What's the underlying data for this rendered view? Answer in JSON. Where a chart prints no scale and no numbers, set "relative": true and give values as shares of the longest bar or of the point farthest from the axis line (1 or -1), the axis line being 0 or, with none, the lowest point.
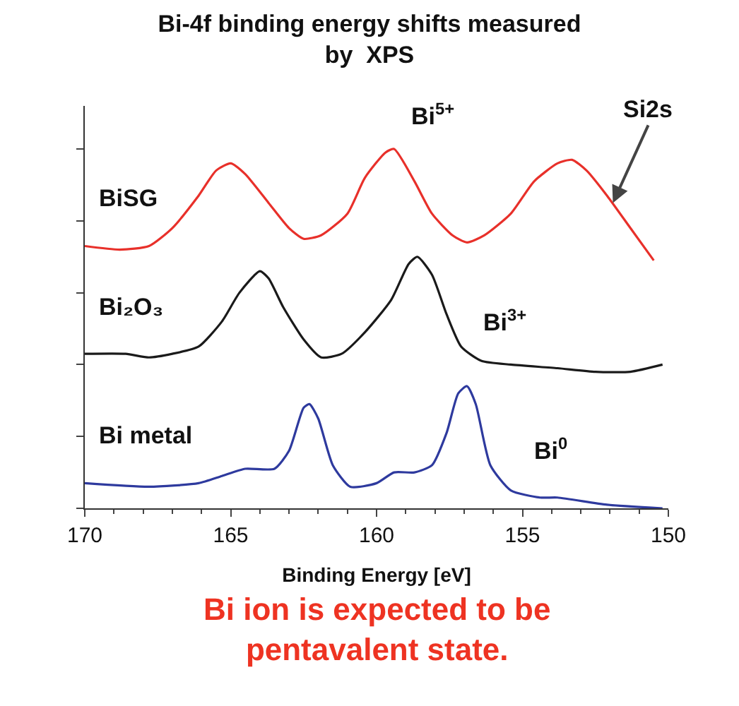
{
  "chart_data": {
    "type": "line",
    "title": "Bi-4f binding energy shifts measured\nby  XPS",
    "xlabel": "Binding Energy [eV]",
    "relative": true,
    "xlim": [
      170,
      150
    ],
    "xticks": [
      170,
      165,
      160,
      155,
      150
    ],
    "grid": false,
    "legend": false,
    "marker": "none",
    "line_style": "solid",
    "series": [
      {
        "name": "BiSG",
        "color": "#e8302a",
        "x": [
          170,
          168.8,
          167.8,
          167.0,
          166.1,
          165.5,
          165.0,
          164.5,
          163.7,
          163.0,
          162.5,
          161.9,
          161.0,
          160.4,
          159.7,
          159.4,
          158.7,
          158.1,
          157.4,
          156.9,
          156.3,
          155.4,
          154.6,
          153.8,
          153.3,
          152.8,
          152.1,
          151.3,
          150.5
        ],
        "values": [
          0.73,
          0.72,
          0.73,
          0.78,
          0.87,
          0.94,
          0.96,
          0.93,
          0.85,
          0.78,
          0.75,
          0.76,
          0.82,
          0.92,
          0.99,
          1,
          0.91,
          0.82,
          0.76,
          0.74,
          0.76,
          0.82,
          0.91,
          0.96,
          0.97,
          0.94,
          0.87,
          0.78,
          0.69
        ]
      },
      {
        "name": "Bi₂O₃",
        "color": "#1a1a1a",
        "x": [
          170,
          168.6,
          167.8,
          167.0,
          166.1,
          165.3,
          164.7,
          164.0,
          163.7,
          163.2,
          162.5,
          161.9,
          161.2,
          160.4,
          159.5,
          158.9,
          158.6,
          158.1,
          157.6,
          157.1,
          156.4,
          155.4,
          153.8,
          152.5,
          151.3,
          150.2
        ],
        "values": [
          0.43,
          0.43,
          0.42,
          0.43,
          0.45,
          0.52,
          0.6,
          0.66,
          0.64,
          0.56,
          0.47,
          0.42,
          0.43,
          0.49,
          0.58,
          0.68,
          0.7,
          0.65,
          0.54,
          0.45,
          0.41,
          0.4,
          0.39,
          0.38,
          0.38,
          0.4
        ]
      },
      {
        "name": "Bi metal",
        "color": "#2e3a9e",
        "x": [
          170,
          167.8,
          166.1,
          165.3,
          164.5,
          163.5,
          163.0,
          162.5,
          162.3,
          162.0,
          161.5,
          160.9,
          160.0,
          159.4,
          158.7,
          158.1,
          157.6,
          157.2,
          156.9,
          156.6,
          156.1,
          155.4,
          154.4,
          153.8,
          152.1,
          150.2
        ],
        "values": [
          0.07,
          0.06,
          0.07,
          0.09,
          0.11,
          0.11,
          0.16,
          0.28,
          0.29,
          0.25,
          0.12,
          0.06,
          0.07,
          0.1,
          0.1,
          0.12,
          0.21,
          0.32,
          0.34,
          0.29,
          0.12,
          0.05,
          0.03,
          0.03,
          0.01,
          0.0
        ]
      }
    ],
    "annotations": [
      "Bi$^{5+}$",
      "Bi$^{3+}$",
      "Bi$^{0}$",
      {
        "text": "Si2s",
        "x": 151.9,
        "y": 0.85
      },
      "Bi ion is expected to be\npentavalent state."
    ]
  }
}
